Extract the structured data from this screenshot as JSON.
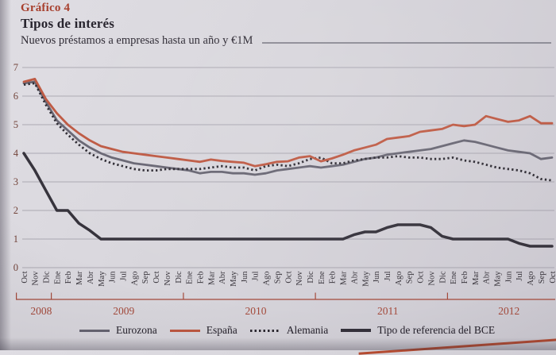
{
  "header": {
    "kicker": "Gráfico 4",
    "title": "Tipos de interés",
    "subtitle": "Nuevos préstamos a empresas hasta un año y €1M"
  },
  "legend": [
    {
      "label": "Eurozona",
      "color": "#666471",
      "style": "solid"
    },
    {
      "label": "España",
      "color": "#bd5740",
      "style": "solid"
    },
    {
      "label": "Alemania",
      "color": "#2b2830",
      "style": "dotted"
    },
    {
      "label": "Tipo de referencia del BCE",
      "color": "#34313a",
      "style": "solid-thick"
    }
  ],
  "colors": {
    "grid": "#9a97a2",
    "y_tick_labels": "#714238",
    "x_tick_labels": "#39353c",
    "year_axis": "#a4493a",
    "accent_red": "#a63e2c"
  },
  "chart_data": {
    "type": "line",
    "title": "Tipos de interés",
    "subtitle": "Nuevos préstamos a empresas hasta un año y €1M",
    "ylabel": "",
    "xlabel": "",
    "ylim": [
      0,
      7
    ],
    "yticks": [
      0,
      1,
      2,
      3,
      4,
      5,
      6,
      7
    ],
    "grid": true,
    "legend_position": "bottom",
    "x_months": [
      "Oct",
      "Nov",
      "Dic",
      "Ene",
      "Feb",
      "Mar",
      "Abr",
      "May",
      "Jun",
      "Jul",
      "Ago",
      "Sep",
      "Oct",
      "Nov",
      "Dic",
      "Ene",
      "Feb",
      "Mar",
      "Abr",
      "May",
      "Jun",
      "Jul",
      "Ago",
      "Sep",
      "Oct",
      "Nov",
      "Dic",
      "Ene",
      "Feb",
      "Mar",
      "Abr",
      "May",
      "Jun",
      "Jul",
      "Ago",
      "Sep",
      "Oct",
      "Nov",
      "Dic",
      "Ene",
      "Feb",
      "Mar",
      "Abr",
      "May",
      "Jun",
      "Jul",
      "Ago",
      "Sep",
      "Oct"
    ],
    "years": [
      {
        "label": "2008",
        "start": 0,
        "end": 2
      },
      {
        "label": "2009",
        "start": 3,
        "end": 14
      },
      {
        "label": "2010",
        "start": 15,
        "end": 26
      },
      {
        "label": "2011",
        "start": 27,
        "end": 38
      },
      {
        "label": "2012",
        "start": 39,
        "end": 48
      }
    ],
    "series": [
      {
        "id": "eurozona",
        "name": "Eurozona",
        "color": "#666471",
        "width": 2.8,
        "dash": null,
        "values": [
          6.45,
          6.5,
          5.8,
          5.15,
          4.8,
          4.45,
          4.2,
          4.0,
          3.85,
          3.75,
          3.65,
          3.6,
          3.55,
          3.5,
          3.45,
          3.4,
          3.3,
          3.35,
          3.35,
          3.3,
          3.3,
          3.25,
          3.3,
          3.4,
          3.45,
          3.5,
          3.55,
          3.5,
          3.55,
          3.6,
          3.7,
          3.8,
          3.85,
          3.95,
          4.0,
          4.05,
          4.1,
          4.15,
          4.25,
          4.35,
          4.45,
          4.4,
          4.3,
          4.2,
          4.1,
          4.05,
          4.0,
          3.8,
          3.85
        ]
      },
      {
        "id": "alemania",
        "name": "Alemania",
        "color": "#2b2830",
        "width": 2.8,
        "dash": "2.3 3.2",
        "values": [
          6.4,
          6.45,
          5.7,
          5.05,
          4.65,
          4.3,
          4.0,
          3.8,
          3.65,
          3.55,
          3.45,
          3.4,
          3.4,
          3.45,
          3.45,
          3.45,
          3.45,
          3.5,
          3.55,
          3.5,
          3.5,
          3.4,
          3.55,
          3.6,
          3.55,
          3.65,
          3.8,
          3.85,
          3.65,
          3.65,
          3.75,
          3.8,
          3.85,
          3.85,
          3.9,
          3.85,
          3.85,
          3.8,
          3.8,
          3.85,
          3.75,
          3.7,
          3.6,
          3.5,
          3.45,
          3.4,
          3.3,
          3.1,
          3.05
        ]
      },
      {
        "id": "espana",
        "name": "España",
        "color": "#bd5740",
        "width": 2.8,
        "dash": null,
        "values": [
          6.5,
          6.6,
          5.9,
          5.4,
          5.0,
          4.7,
          4.45,
          4.25,
          4.15,
          4.05,
          4.0,
          3.95,
          3.9,
          3.85,
          3.8,
          3.75,
          3.7,
          3.78,
          3.73,
          3.7,
          3.67,
          3.55,
          3.62,
          3.7,
          3.72,
          3.85,
          3.9,
          3.72,
          3.82,
          3.95,
          4.1,
          4.2,
          4.3,
          4.5,
          4.55,
          4.6,
          4.75,
          4.8,
          4.85,
          5.0,
          4.95,
          5.0,
          5.3,
          5.2,
          5.1,
          5.15,
          5.3,
          5.05,
          5.05
        ]
      },
      {
        "id": "bce",
        "name": "Tipo de referencia del BCE",
        "color": "#34313a",
        "width": 3.5,
        "dash": null,
        "values": [
          4.0,
          3.4,
          2.7,
          2.0,
          2.0,
          1.55,
          1.3,
          1.0,
          1.0,
          1.0,
          1.0,
          1.0,
          1.0,
          1.0,
          1.0,
          1.0,
          1.0,
          1.0,
          1.0,
          1.0,
          1.0,
          1.0,
          1.0,
          1.0,
          1.0,
          1.0,
          1.0,
          1.0,
          1.0,
          1.0,
          1.15,
          1.25,
          1.25,
          1.4,
          1.5,
          1.5,
          1.5,
          1.4,
          1.1,
          1.0,
          1.0,
          1.0,
          1.0,
          1.0,
          1.0,
          0.85,
          0.75,
          0.75,
          0.75
        ]
      }
    ]
  }
}
